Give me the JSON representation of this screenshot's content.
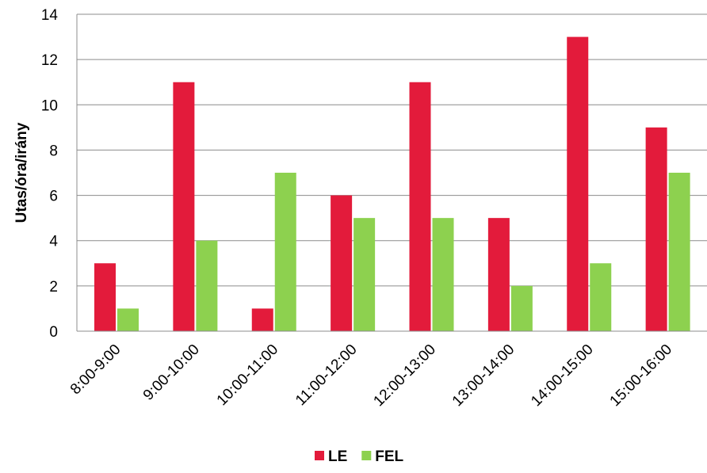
{
  "chart_data": {
    "type": "bar",
    "title": "",
    "xlabel": "",
    "ylabel": "Utas/óra/irány",
    "ylim": [
      0,
      14
    ],
    "yticks": [
      "0",
      "2",
      "4",
      "6",
      "8",
      "10",
      "12",
      "14"
    ],
    "grid": true,
    "legend_position": "bottom",
    "categories": [
      "8:00-9:00",
      "9:00-10:00",
      "10:00-11:00",
      "11:00-12:00",
      "12:00-13:00",
      "13:00-14:00",
      "14:00-15:00",
      "15:00-16:00"
    ],
    "series": [
      {
        "name": "LE",
        "color": "#E31B3B",
        "values": [
          3,
          11,
          1,
          6,
          11,
          5,
          13,
          9
        ]
      },
      {
        "name": "FEL",
        "color": "#8DD14F",
        "values": [
          1,
          4,
          7,
          5,
          5,
          2,
          3,
          7
        ]
      }
    ]
  }
}
